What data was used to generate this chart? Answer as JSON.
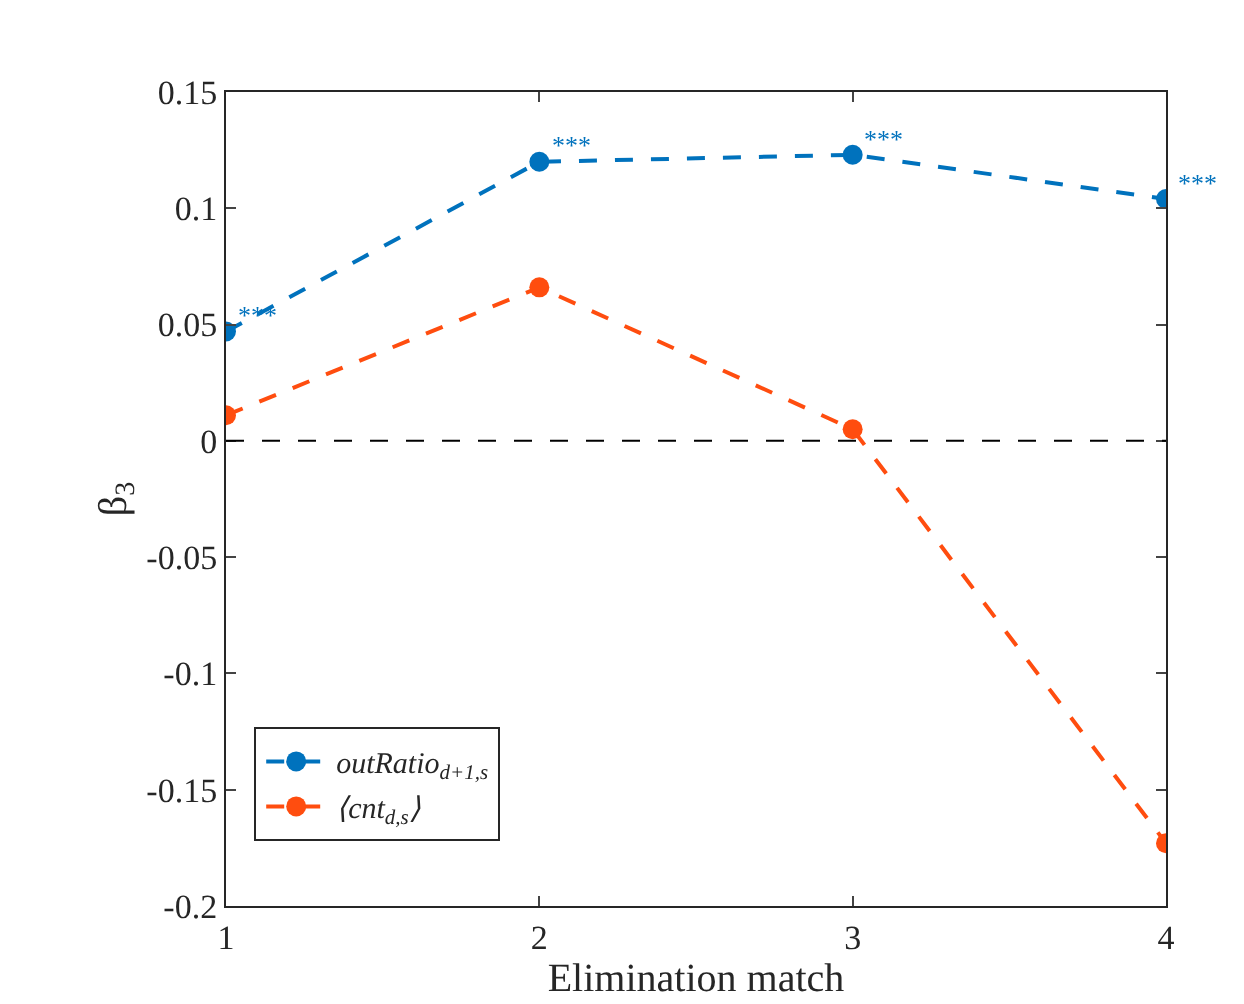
{
  "chart_data": {
    "type": "line",
    "xlabel": "Elimination match",
    "ylabel": "β$_{3}$",
    "x": [
      1,
      2,
      3,
      4
    ],
    "series": [
      {
        "name": "outRatio$_{d+1,s}$",
        "color": "#0072bd",
        "values": [
          0.047,
          0.12,
          0.123,
          0.104
        ]
      },
      {
        "name": "⟨cnt$_{d,s}$⟩",
        "color": "#ff4d0f",
        "values": [
          0.011,
          0.066,
          0.005,
          -0.173
        ]
      }
    ],
    "xlim": [
      1,
      4
    ],
    "xticks": [
      1,
      2,
      3,
      4
    ],
    "ylim": [
      -0.2,
      0.15
    ],
    "yticks": [
      -0.2,
      -0.15,
      -0.1,
      -0.05,
      0,
      0.05,
      0.1,
      0.15
    ],
    "ref_lines": [
      {
        "axis": "y",
        "value": 0,
        "color": "#000000",
        "line_style": "dashed"
      }
    ],
    "annotations": [
      {
        "text": "***",
        "x": 1,
        "y": 0.047
      },
      {
        "text": "***",
        "x": 2,
        "y": 0.12
      },
      {
        "text": "***",
        "x": 3,
        "y": 0.123
      },
      {
        "text": "***",
        "x": 4,
        "y": 0.104
      }
    ],
    "legend": "bottom left",
    "marker": "circle",
    "line_style": "dashed",
    "grid": false
  }
}
